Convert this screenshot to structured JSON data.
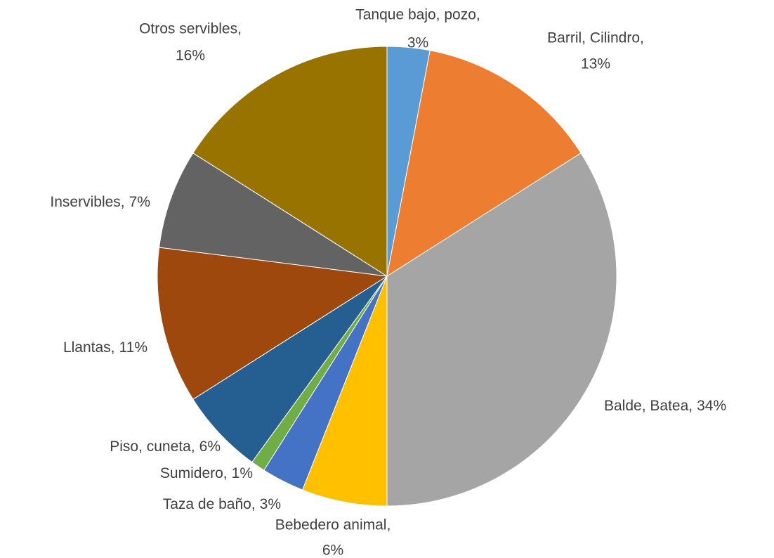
{
  "chart_data": {
    "type": "pie",
    "categories": [
      "Tanque bajo, pozo,",
      "Barril, Cilindro,",
      "Balde, Batea,",
      "Bebedero animal,",
      "Taza de baño,",
      "Sumidero,",
      "Piso, cuneta,",
      "Llantas,",
      "Inservibles,",
      "Otros servibles,"
    ],
    "values": [
      3,
      13,
      34,
      6,
      3,
      1,
      6,
      11,
      7,
      16
    ],
    "value_labels": [
      "3%",
      "13%",
      "34%",
      "6%",
      "3%",
      "1%",
      "6%",
      "11%",
      "7%",
      "16%"
    ],
    "colors": [
      "#5b9bd5",
      "#ed7d31",
      "#a5a5a5",
      "#ffc000",
      "#4472c4",
      "#70ad47",
      "#255e91",
      "#9e480e",
      "#636363",
      "#997300"
    ]
  }
}
